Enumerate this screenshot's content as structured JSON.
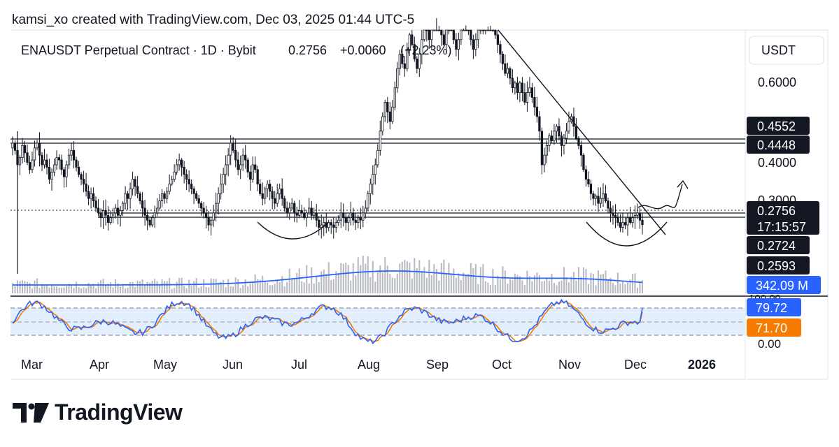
{
  "attribution": "kamsi_xo created with TradingView.com, Dec 03, 2025 01:44 UTC-5",
  "brand": "TradingView",
  "colors": {
    "candle": "#131722",
    "volume_bar": "#b9bcc4",
    "volume_ma": "#2962ff",
    "stoch_k": "#2962ff",
    "stoch_d": "#f57c00",
    "stoch_band": "#e3effd",
    "price_badge": "#131722",
    "volume_badge": "#2962ff",
    "k_badge": "#2962ff",
    "d_badge": "#f57c00"
  },
  "chart_data": {
    "type": "candlestick",
    "title": "ENAUSDT Perpetual Contract · 1D · Bybit",
    "legend": {
      "last": "0.2756",
      "change": "+0.0060",
      "change_pct": "(+2.23%)"
    },
    "currency": "USDT",
    "y_axis_ticks": [
      "0.6000",
      "0.4000",
      "0.3000"
    ],
    "x_axis_ticks": [
      "Mar",
      "Apr",
      "May",
      "Jun",
      "Jul",
      "Aug",
      "Sep",
      "Oct",
      "Nov",
      "Dec",
      "2026"
    ],
    "price_labels": [
      {
        "value": "0.4552",
        "style": "dark"
      },
      {
        "value": "0.4448",
        "style": "dark"
      },
      {
        "value": "0.2756",
        "style": "dark",
        "countdown": "17:15:57"
      },
      {
        "value": "0.2724",
        "style": "dark"
      },
      {
        "value": "0.2593",
        "style": "dark"
      }
    ],
    "horizontal_levels": [
      0.4552,
      0.4448,
      0.2724,
      0.2593
    ],
    "last_price": 0.2756,
    "y_min": 0.22,
    "y_max": 0.68,
    "closes": [
      0.445,
      0.43,
      0.4,
      0.415,
      0.44,
      0.425,
      0.405,
      0.39,
      0.41,
      0.435,
      0.445,
      0.42,
      0.4,
      0.41,
      0.395,
      0.37,
      0.385,
      0.4,
      0.415,
      0.41,
      0.39,
      0.375,
      0.4,
      0.42,
      0.43,
      0.41,
      0.395,
      0.38,
      0.37,
      0.36,
      0.345,
      0.33,
      0.34,
      0.325,
      0.31,
      0.3,
      0.29,
      0.305,
      0.295,
      0.28,
      0.29,
      0.3,
      0.31,
      0.295,
      0.305,
      0.32,
      0.34,
      0.33,
      0.35,
      0.37,
      0.355,
      0.34,
      0.325,
      0.31,
      0.295,
      0.285,
      0.275,
      0.29,
      0.3,
      0.31,
      0.325,
      0.34,
      0.33,
      0.345,
      0.36,
      0.37,
      0.385,
      0.4,
      0.41,
      0.395,
      0.38,
      0.37,
      0.36,
      0.35,
      0.34,
      0.33,
      0.32,
      0.31,
      0.3,
      0.29,
      0.275,
      0.285,
      0.3,
      0.32,
      0.34,
      0.36,
      0.38,
      0.4,
      0.42,
      0.445,
      0.43,
      0.41,
      0.39,
      0.4,
      0.42,
      0.41,
      0.385,
      0.37,
      0.4,
      0.39,
      0.36,
      0.34,
      0.33,
      0.35,
      0.36,
      0.345,
      0.33,
      0.32,
      0.34,
      0.35,
      0.33,
      0.31,
      0.3,
      0.31,
      0.32,
      0.3,
      0.295,
      0.305,
      0.3,
      0.29,
      0.3,
      0.31,
      0.295,
      0.3,
      0.285,
      0.27,
      0.275,
      0.28,
      0.27,
      0.28,
      0.275,
      0.27,
      0.28,
      0.285,
      0.3,
      0.29,
      0.28,
      0.29,
      0.3,
      0.285,
      0.28,
      0.29,
      0.285,
      0.3,
      0.31,
      0.34,
      0.36,
      0.38,
      0.4,
      0.43,
      0.47,
      0.5,
      0.53,
      0.51,
      0.49,
      0.52,
      0.56,
      0.6,
      0.63,
      0.61,
      0.6,
      0.64,
      0.67,
      0.65,
      0.62,
      0.6,
      0.63,
      0.66,
      0.7,
      0.68,
      0.66,
      0.69,
      0.71,
      0.73,
      0.7,
      0.67,
      0.65,
      0.68,
      0.71,
      0.69,
      0.66,
      0.64,
      0.66,
      0.69,
      0.72,
      0.7,
      0.68,
      0.66,
      0.64,
      0.66,
      0.69,
      0.7,
      0.68,
      0.7,
      0.73,
      0.71,
      0.69,
      0.67,
      0.65,
      0.63,
      0.61,
      0.59,
      0.6,
      0.58,
      0.56,
      0.57,
      0.55,
      0.57,
      0.55,
      0.53,
      0.55,
      0.56,
      0.54,
      0.52,
      0.5,
      0.47,
      0.4,
      0.42,
      0.44,
      0.46,
      0.45,
      0.47,
      0.48,
      0.46,
      0.44,
      0.455,
      0.47,
      0.49,
      0.5,
      0.48,
      0.455,
      0.44,
      0.42,
      0.39,
      0.37,
      0.36,
      0.34,
      0.33,
      0.335,
      0.32,
      0.33,
      0.34,
      0.325,
      0.31,
      0.3,
      0.295,
      0.29,
      0.28,
      0.27,
      0.28,
      0.275,
      0.29,
      0.28,
      0.29,
      0.295,
      0.3,
      0.285,
      0.2756
    ],
    "volume": {
      "label": "342.09 M",
      "note": "volume histogram with moving average (blue)"
    },
    "stochastic": {
      "k_label": "79.72",
      "d_label": "71.70",
      "axis_ticks": [
        "100.00",
        "0.00"
      ],
      "upper_band": 80,
      "lower_band": 20,
      "k_last": 79.72,
      "d_last": 71.7
    },
    "annotations": [
      {
        "type": "descending-trendline"
      },
      {
        "type": "rounded-bottom",
        "where": "Jun–Jul"
      },
      {
        "type": "rounded-bottom",
        "where": "Nov–Dec"
      },
      {
        "type": "projected-path-arrow",
        "direction": "up"
      }
    ]
  }
}
